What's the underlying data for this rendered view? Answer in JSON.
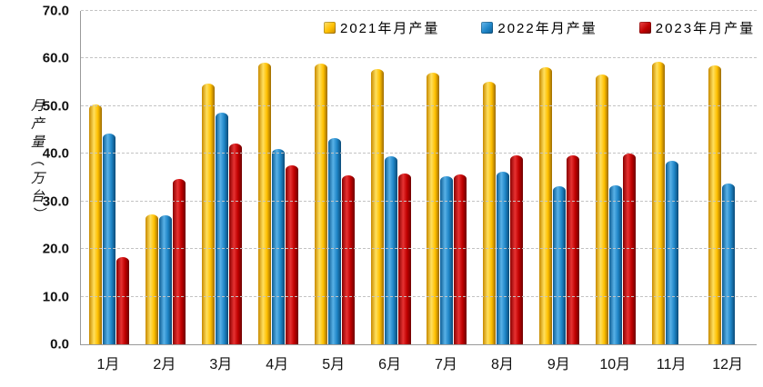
{
  "chart_data": {
    "type": "bar",
    "title": "",
    "ylabel": "月产量（万台）",
    "xlabel": "",
    "ylim": [
      0,
      70
    ],
    "ytick_step": 10,
    "ytick_labels": [
      "0.0",
      "10.0",
      "20.0",
      "30.0",
      "40.0",
      "50.0",
      "60.0",
      "70.0"
    ],
    "grid": "dashed horizontal",
    "legend_position": "top",
    "categories": [
      "1月",
      "2月",
      "3月",
      "4月",
      "5月",
      "6月",
      "7月",
      "8月",
      "9月",
      "10月",
      "11月",
      "12月"
    ],
    "series": [
      {
        "name": "2021年月产量",
        "color": "#FFC000",
        "values": [
          50.3,
          27.2,
          54.8,
          59.2,
          58.9,
          57.8,
          57.1,
          55.2,
          58.1,
          56.6,
          59.4,
          58.5
        ]
      },
      {
        "name": "2022年月产量",
        "color": "#1F86C8",
        "values": [
          44.3,
          27.1,
          48.6,
          41.0,
          43.3,
          39.4,
          35.3,
          36.2,
          33.2,
          33.3,
          38.6,
          33.7
        ]
      },
      {
        "name": "2023年月产量",
        "color": "#C00000",
        "values": [
          18.4,
          34.7,
          42.2,
          37.5,
          35.5,
          35.8,
          35.6,
          39.6,
          39.7,
          40.1,
          null,
          null
        ]
      }
    ],
    "colors": {
      "grid": "#C3C3C3",
      "axis": "#9A9A9A",
      "text": "#111111",
      "background": "#FFFFFF"
    }
  }
}
